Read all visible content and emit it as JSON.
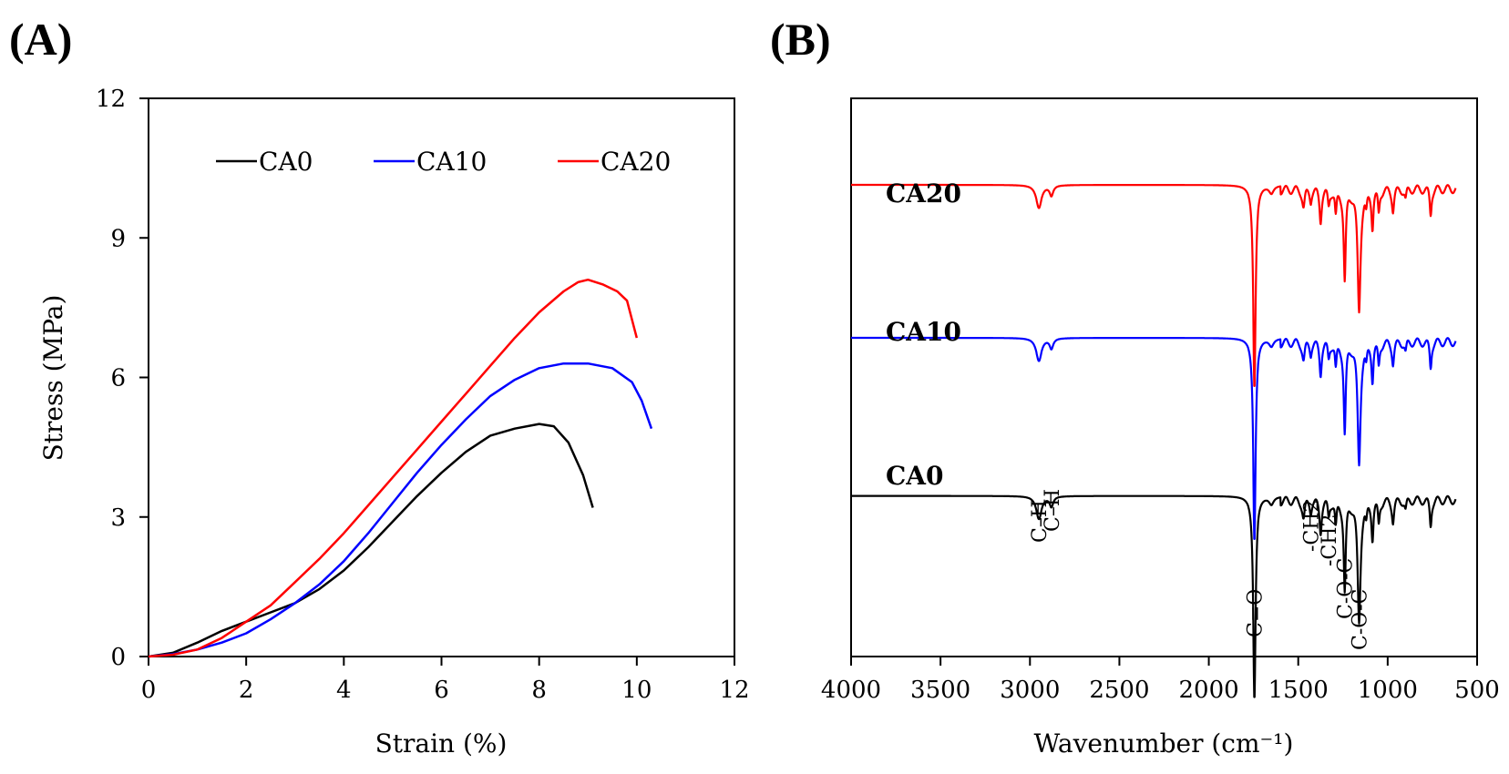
{
  "panels": {
    "a": {
      "label": "(A)"
    },
    "b": {
      "label": "(B)"
    }
  },
  "chart_data": [
    {
      "type": "line",
      "xlabel": "Strain (%)",
      "ylabel": "Stress (MPa)",
      "xlim": [
        0,
        12
      ],
      "ylim": [
        0,
        12
      ],
      "xticks": [
        "0",
        "2",
        "4",
        "6",
        "8",
        "10",
        "12"
      ],
      "yticks": [
        "0",
        "3",
        "6",
        "9",
        "12"
      ],
      "grid": false,
      "legend": "top",
      "series": [
        {
          "name": "CA0",
          "color": "#000000",
          "points": [
            [
              0,
              0
            ],
            [
              0.5,
              0.08
            ],
            [
              1,
              0.3
            ],
            [
              1.5,
              0.55
            ],
            [
              2,
              0.75
            ],
            [
              2.5,
              0.95
            ],
            [
              3,
              1.15
            ],
            [
              3.5,
              1.45
            ],
            [
              4,
              1.85
            ],
            [
              4.5,
              2.35
            ],
            [
              5,
              2.9
            ],
            [
              5.5,
              3.45
            ],
            [
              6,
              3.95
            ],
            [
              6.5,
              4.4
            ],
            [
              7,
              4.75
            ],
            [
              7.5,
              4.9
            ],
            [
              8,
              5.0
            ],
            [
              8.3,
              4.95
            ],
            [
              8.6,
              4.6
            ],
            [
              8.9,
              3.9
            ],
            [
              9.1,
              3.2
            ]
          ]
        },
        {
          "name": "CA10",
          "color": "#0000ff",
          "points": [
            [
              0,
              0
            ],
            [
              0.5,
              0.05
            ],
            [
              1,
              0.15
            ],
            [
              1.5,
              0.3
            ],
            [
              2,
              0.5
            ],
            [
              2.5,
              0.8
            ],
            [
              3,
              1.15
            ],
            [
              3.5,
              1.55
            ],
            [
              4,
              2.05
            ],
            [
              4.5,
              2.65
            ],
            [
              5,
              3.3
            ],
            [
              5.5,
              3.95
            ],
            [
              6,
              4.55
            ],
            [
              6.5,
              5.1
            ],
            [
              7,
              5.6
            ],
            [
              7.5,
              5.95
            ],
            [
              8,
              6.2
            ],
            [
              8.5,
              6.3
            ],
            [
              9,
              6.3
            ],
            [
              9.5,
              6.2
            ],
            [
              9.9,
              5.9
            ],
            [
              10.1,
              5.5
            ],
            [
              10.3,
              4.9
            ]
          ]
        },
        {
          "name": "CA20",
          "color": "#ff0000",
          "points": [
            [
              0,
              0
            ],
            [
              0.5,
              0.04
            ],
            [
              1,
              0.15
            ],
            [
              1.5,
              0.4
            ],
            [
              2,
              0.75
            ],
            [
              2.5,
              1.1
            ],
            [
              3,
              1.6
            ],
            [
              3.5,
              2.1
            ],
            [
              4,
              2.65
            ],
            [
              4.5,
              3.25
            ],
            [
              5,
              3.85
            ],
            [
              5.5,
              4.45
            ],
            [
              6,
              5.05
            ],
            [
              6.5,
              5.65
            ],
            [
              7,
              6.25
            ],
            [
              7.5,
              6.85
            ],
            [
              8,
              7.4
            ],
            [
              8.5,
              7.85
            ],
            [
              8.8,
              8.05
            ],
            [
              9,
              8.1
            ],
            [
              9.3,
              8.0
            ],
            [
              9.6,
              7.85
            ],
            [
              9.8,
              7.65
            ],
            [
              10,
              6.85
            ]
          ]
        }
      ]
    },
    {
      "type": "line",
      "xlabel": "Wavenumber (cm⁻¹)",
      "ylabel": "",
      "xlim": [
        4000,
        500
      ],
      "xticks": [
        "4000",
        "3500",
        "3000",
        "2500",
        "2000",
        "1500",
        "1000",
        "500"
      ],
      "grid": false,
      "series_labels": [
        "CA20",
        "CA10",
        "CA0"
      ],
      "series": [
        {
          "name": "CA20",
          "color": "#ff0000",
          "baseline": 10.6
        },
        {
          "name": "CA10",
          "color": "#0000ff",
          "baseline": 7.6
        },
        {
          "name": "CA0",
          "color": "#000000",
          "baseline": 4.5
        }
      ],
      "peaks": [
        {
          "x": 2950,
          "depth": 0.45,
          "width": 18
        },
        {
          "x": 2880,
          "depth": 0.2,
          "width": 12
        },
        {
          "x": 1745,
          "depth": 4.0,
          "width": 8
        },
        {
          "x": 1650,
          "depth": 0.15,
          "width": 15
        },
        {
          "x": 1470,
          "depth": 0.35,
          "width": 8
        },
        {
          "x": 1430,
          "depth": 0.2,
          "width": 6
        },
        {
          "x": 1375,
          "depth": 0.6,
          "width": 7
        },
        {
          "x": 1330,
          "depth": 0.3,
          "width": 6
        },
        {
          "x": 1290,
          "depth": 0.5,
          "width": 6
        },
        {
          "x": 1240,
          "depth": 1.8,
          "width": 7
        },
        {
          "x": 1160,
          "depth": 2.4,
          "width": 10
        },
        {
          "x": 1120,
          "depth": 0.3,
          "width": 6
        },
        {
          "x": 1085,
          "depth": 0.7,
          "width": 6
        },
        {
          "x": 1050,
          "depth": 0.45,
          "width": 6
        },
        {
          "x": 970,
          "depth": 0.4,
          "width": 7
        },
        {
          "x": 900,
          "depth": 0.2,
          "width": 6
        },
        {
          "x": 760,
          "depth": 0.5,
          "width": 6
        }
      ],
      "annotations": [
        {
          "text": "C–H",
          "x": 2950
        },
        {
          "text": "C–H",
          "x": 2880
        },
        {
          "text": "C=O",
          "x": 1745
        },
        {
          "text": "-CH2",
          "x": 1430
        },
        {
          "text": "-CH2",
          "x": 1330
        },
        {
          "text": "C-O-C",
          "x": 1240
        },
        {
          "text": "C-O-C",
          "x": 1160
        }
      ]
    }
  ]
}
